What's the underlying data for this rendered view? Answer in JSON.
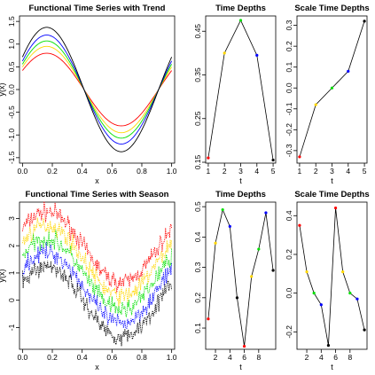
{
  "chart_data": [
    {
      "id": "trend-curves",
      "type": "line",
      "title": "Functional Time Series with Trend",
      "xlabel": "x",
      "ylabel": "y(x)",
      "xlim": [
        -0.02,
        1.02
      ],
      "ylim": [
        -1.62,
        1.62
      ],
      "xticks": [
        "0.0",
        "0.2",
        "0.4",
        "0.6",
        "0.8",
        "1.0"
      ],
      "yticks": [
        "-1.5",
        "-1.0",
        "-0.5",
        "0.0",
        "0.5",
        "1.0",
        "1.5"
      ],
      "grid": false,
      "series": [
        {
          "color": "#ff0000",
          "amplitude": 0.8,
          "dashed": false
        },
        {
          "color": "#ffd700",
          "amplitude": 0.95,
          "dashed": false
        },
        {
          "color": "#00e000",
          "amplitude": 1.07,
          "dashed": false
        },
        {
          "color": "#0000ff",
          "amplitude": 1.2,
          "dashed": false
        },
        {
          "color": "#000000",
          "amplitude": 1.37,
          "dashed": false
        }
      ]
    },
    {
      "id": "trend-time-depths",
      "type": "line",
      "title": "Time Depths",
      "xlabel": "t",
      "ylabel": "",
      "xlim": [
        0.84,
        5.16
      ],
      "ylim": [
        0.148,
        0.485
      ],
      "xticks": [
        "1",
        "2",
        "3",
        "4",
        "5"
      ],
      "yticks": [
        "0.15",
        "0.25",
        "0.35",
        "0.45"
      ],
      "grid": false,
      "x": [
        1,
        2,
        3,
        4,
        5
      ],
      "y": [
        0.16,
        0.4,
        0.475,
        0.395,
        0.155
      ],
      "point_colors": [
        "#ff0000",
        "#ffd700",
        "#00e000",
        "#0000ff",
        "#000000"
      ]
    },
    {
      "id": "trend-scale-time-depths",
      "type": "line",
      "title": "Scale Time Depths",
      "xlabel": "t",
      "ylabel": "",
      "xlim": [
        0.84,
        5.16
      ],
      "ylim": [
        -0.36,
        0.345
      ],
      "xticks": [
        "1",
        "2",
        "3",
        "4",
        "5"
      ],
      "yticks": [
        "-0.3",
        "-0.2",
        "-0.1",
        "0.0",
        "0.1",
        "0.2",
        "0.3"
      ],
      "grid": false,
      "x": [
        1,
        2,
        3,
        4,
        5
      ],
      "y": [
        -0.33,
        -0.08,
        0.0,
        0.08,
        0.32
      ],
      "point_colors": [
        "#ff0000",
        "#ffd700",
        "#00e000",
        "#0000ff",
        "#000000"
      ]
    },
    {
      "id": "season-curves",
      "type": "line",
      "title": "Functional Time Series with Season",
      "xlabel": "x",
      "ylabel": "y(x)",
      "xlim": [
        -0.02,
        1.02
      ],
      "ylim": [
        -1.8,
        3.6
      ],
      "xticks": [
        "0.0",
        "0.2",
        "0.4",
        "0.6",
        "0.8",
        "1.0"
      ],
      "yticks": [
        "-1",
        "0",
        "1",
        "2",
        "3"
      ],
      "grid": false,
      "series": [
        {
          "color": "#ff0000",
          "offset": 1.95,
          "dashed": true
        },
        {
          "color": "#ffd700",
          "offset": 1.45,
          "dashed": true
        },
        {
          "color": "#00e000",
          "offset": 0.95,
          "dashed": true
        },
        {
          "color": "#0000ff",
          "offset": 0.45,
          "dashed": true
        },
        {
          "color": "#000000",
          "offset": -0.05,
          "dashed": true
        }
      ]
    },
    {
      "id": "season-time-depths",
      "type": "line",
      "title": "Time Depths",
      "xlabel": "t",
      "ylabel": "",
      "xlim": [
        0.64,
        10.36
      ],
      "ylim": [
        0.03,
        0.515
      ],
      "xticks": [
        "2",
        "4",
        "6",
        "8"
      ],
      "yticks": [
        "0.1",
        "0.2",
        "0.3",
        "0.4",
        "0.5"
      ],
      "grid": false,
      "x": [
        1,
        2,
        3,
        4,
        5,
        6,
        7,
        8,
        9,
        10
      ],
      "y": [
        0.13,
        0.38,
        0.49,
        0.435,
        0.2,
        0.04,
        0.27,
        0.36,
        0.48,
        0.29
      ],
      "point_colors": [
        "#ff0000",
        "#ffd700",
        "#00e000",
        "#0000ff",
        "#000000",
        "#ff0000",
        "#ffd700",
        "#00e000",
        "#0000ff",
        "#000000"
      ]
    },
    {
      "id": "season-scale-time-depths",
      "type": "line",
      "title": "Scale Time Depths",
      "xlabel": "t",
      "ylabel": "",
      "xlim": [
        0.64,
        10.36
      ],
      "ylim": [
        -0.29,
        0.47
      ],
      "xticks": [
        "2",
        "4",
        "6",
        "8"
      ],
      "yticks": [
        "-0.2",
        "0.0",
        "0.2",
        "0.4"
      ],
      "grid": false,
      "x": [
        1,
        2,
        3,
        4,
        5,
        6,
        7,
        8,
        9,
        10
      ],
      "y": [
        0.35,
        0.11,
        0.0,
        -0.06,
        -0.27,
        0.44,
        0.11,
        0.0,
        -0.03,
        -0.19
      ],
      "point_colors": [
        "#ff0000",
        "#ffd700",
        "#00e000",
        "#0000ff",
        "#000000",
        "#ff0000",
        "#ffd700",
        "#00e000",
        "#0000ff",
        "#000000"
      ]
    }
  ]
}
